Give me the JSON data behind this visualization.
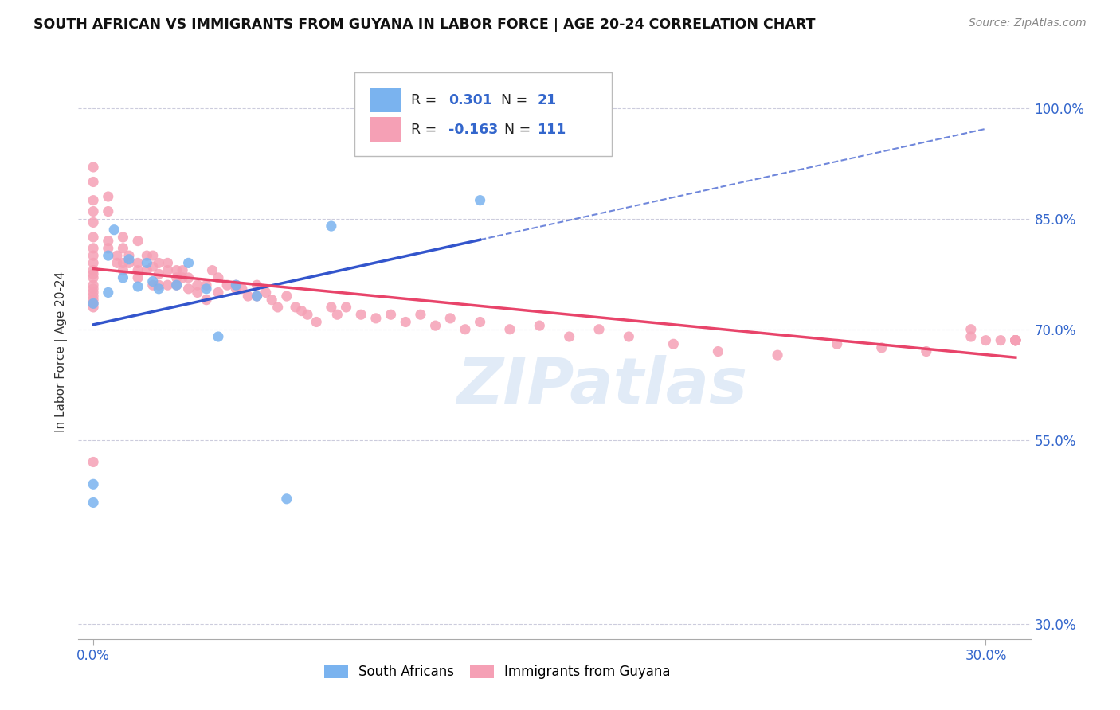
{
  "title": "SOUTH AFRICAN VS IMMIGRANTS FROM GUYANA IN LABOR FORCE | AGE 20-24 CORRELATION CHART",
  "source": "Source: ZipAtlas.com",
  "ylabel": "In Labor Force | Age 20-24",
  "xlim": [
    -0.005,
    0.315
  ],
  "ylim": [
    0.28,
    1.06
  ],
  "yticks": [
    0.3,
    0.55,
    0.7,
    0.85,
    1.0
  ],
  "ytick_labels": [
    "30.0%",
    "55.0%",
    "70.0%",
    "85.0%",
    "100.0%"
  ],
  "xticks": [
    0.0,
    0.3
  ],
  "xtick_labels": [
    "0.0%",
    "30.0%"
  ],
  "watermark": "ZIPatlas",
  "blue_R": 0.301,
  "blue_N": 21,
  "pink_R": -0.163,
  "pink_N": 111,
  "blue_color": "#7ab3ef",
  "pink_color": "#f5a0b5",
  "blue_line_color": "#3355cc",
  "pink_line_color": "#e8446a",
  "legend_color": "#3366cc",
  "blue_scatter_x": [
    0.0,
    0.0,
    0.0,
    0.005,
    0.005,
    0.007,
    0.01,
    0.012,
    0.015,
    0.018,
    0.02,
    0.022,
    0.028,
    0.032,
    0.038,
    0.042,
    0.048,
    0.055,
    0.065,
    0.08,
    0.13
  ],
  "blue_scatter_y": [
    0.465,
    0.49,
    0.735,
    0.75,
    0.8,
    0.835,
    0.77,
    0.795,
    0.758,
    0.79,
    0.765,
    0.755,
    0.76,
    0.79,
    0.755,
    0.69,
    0.76,
    0.745,
    0.47,
    0.84,
    0.875
  ],
  "pink_scatter_x": [
    0.0,
    0.0,
    0.0,
    0.0,
    0.0,
    0.0,
    0.0,
    0.0,
    0.0,
    0.0,
    0.0,
    0.0,
    0.0,
    0.0,
    0.0,
    0.0,
    0.0,
    0.0,
    0.0,
    0.0,
    0.005,
    0.005,
    0.005,
    0.005,
    0.008,
    0.008,
    0.01,
    0.01,
    0.01,
    0.01,
    0.012,
    0.012,
    0.015,
    0.015,
    0.015,
    0.015,
    0.018,
    0.018,
    0.02,
    0.02,
    0.02,
    0.022,
    0.022,
    0.022,
    0.025,
    0.025,
    0.025,
    0.028,
    0.028,
    0.028,
    0.03,
    0.03,
    0.032,
    0.032,
    0.035,
    0.035,
    0.038,
    0.038,
    0.04,
    0.042,
    0.042,
    0.045,
    0.048,
    0.048,
    0.05,
    0.052,
    0.055,
    0.055,
    0.058,
    0.06,
    0.062,
    0.065,
    0.068,
    0.07,
    0.072,
    0.075,
    0.08,
    0.082,
    0.085,
    0.09,
    0.095,
    0.1,
    0.105,
    0.11,
    0.115,
    0.12,
    0.125,
    0.13,
    0.14,
    0.15,
    0.16,
    0.17,
    0.18,
    0.195,
    0.21,
    0.23,
    0.25,
    0.265,
    0.28,
    0.295,
    0.295,
    0.3,
    0.305,
    0.31,
    0.31,
    0.31,
    0.31,
    0.31,
    0.31,
    0.31,
    0.31
  ],
  "pink_scatter_y": [
    0.92,
    0.9,
    0.875,
    0.86,
    0.845,
    0.825,
    0.81,
    0.8,
    0.79,
    0.78,
    0.775,
    0.77,
    0.76,
    0.755,
    0.75,
    0.745,
    0.74,
    0.735,
    0.73,
    0.52,
    0.88,
    0.86,
    0.82,
    0.81,
    0.8,
    0.79,
    0.825,
    0.81,
    0.79,
    0.78,
    0.8,
    0.79,
    0.82,
    0.79,
    0.78,
    0.77,
    0.8,
    0.78,
    0.8,
    0.785,
    0.76,
    0.79,
    0.775,
    0.76,
    0.79,
    0.78,
    0.76,
    0.78,
    0.77,
    0.76,
    0.78,
    0.77,
    0.77,
    0.755,
    0.76,
    0.75,
    0.76,
    0.74,
    0.78,
    0.77,
    0.75,
    0.76,
    0.76,
    0.755,
    0.755,
    0.745,
    0.76,
    0.745,
    0.75,
    0.74,
    0.73,
    0.745,
    0.73,
    0.725,
    0.72,
    0.71,
    0.73,
    0.72,
    0.73,
    0.72,
    0.715,
    0.72,
    0.71,
    0.72,
    0.705,
    0.715,
    0.7,
    0.71,
    0.7,
    0.705,
    0.69,
    0.7,
    0.69,
    0.68,
    0.67,
    0.665,
    0.68,
    0.675,
    0.67,
    0.7,
    0.69,
    0.685,
    0.685,
    0.685,
    0.685,
    0.685,
    0.685,
    0.685,
    0.685,
    0.685,
    0.685
  ]
}
